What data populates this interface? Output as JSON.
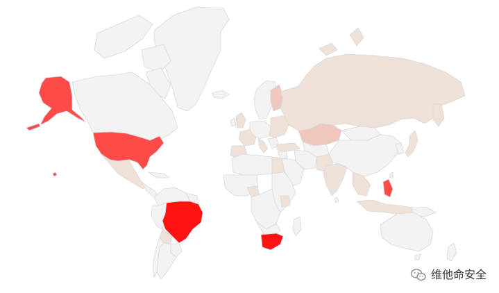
{
  "map": {
    "colors": {
      "background": "#ffffff",
      "land_default": "#f2f2f2",
      "land_light": "#efe1d8",
      "land_medium": "#efc8bd",
      "land_strong": "#ff4a4a",
      "land_max": "#ff1212",
      "border": "#d9d9d9"
    },
    "legend": null
  },
  "watermark": {
    "label": "维他命安全",
    "icon": "wechat-icon"
  }
}
